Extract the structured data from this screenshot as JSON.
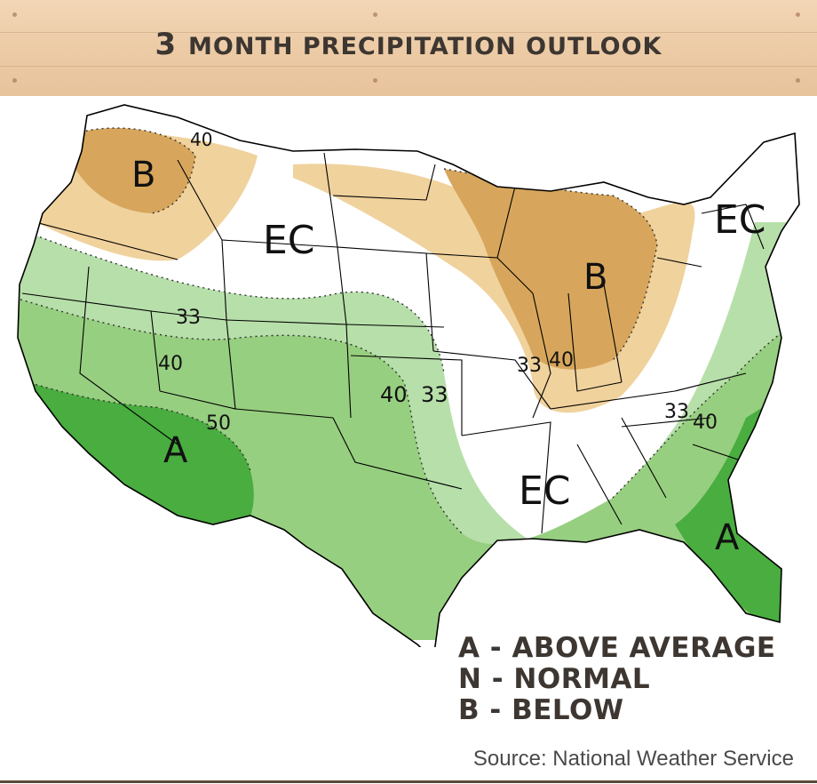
{
  "banner": {
    "title_first": "3",
    "title_rest": "MONTH PRECIPITATION OUTLOOK"
  },
  "colors": {
    "above_strong": "#49ad3f",
    "above_medium": "#97cf80",
    "above_light": "#b7dfaa",
    "below_strong": "#d7a65c",
    "below_light": "#f0d29d",
    "lines": "#000000"
  },
  "map_labels": {
    "nw_b": "B",
    "nw_40": "40",
    "ec_north": "EC",
    "ne_ec": "EC",
    "gl_b": "B",
    "mw_33": "33",
    "mw_40": "40",
    "w_33": "33",
    "w_40": "40",
    "sw_50": "50",
    "sw_a": "A",
    "plains_40": "40",
    "plains_33": "33",
    "se_33": "33",
    "se_40": "40",
    "s_ec": "EC",
    "fl_a": "A"
  },
  "legend": {
    "above": "A - ABOVE AVERAGE",
    "normal": "N - NORMAL",
    "below": "B - BELOW"
  },
  "source": "Source: National Weather Service"
}
